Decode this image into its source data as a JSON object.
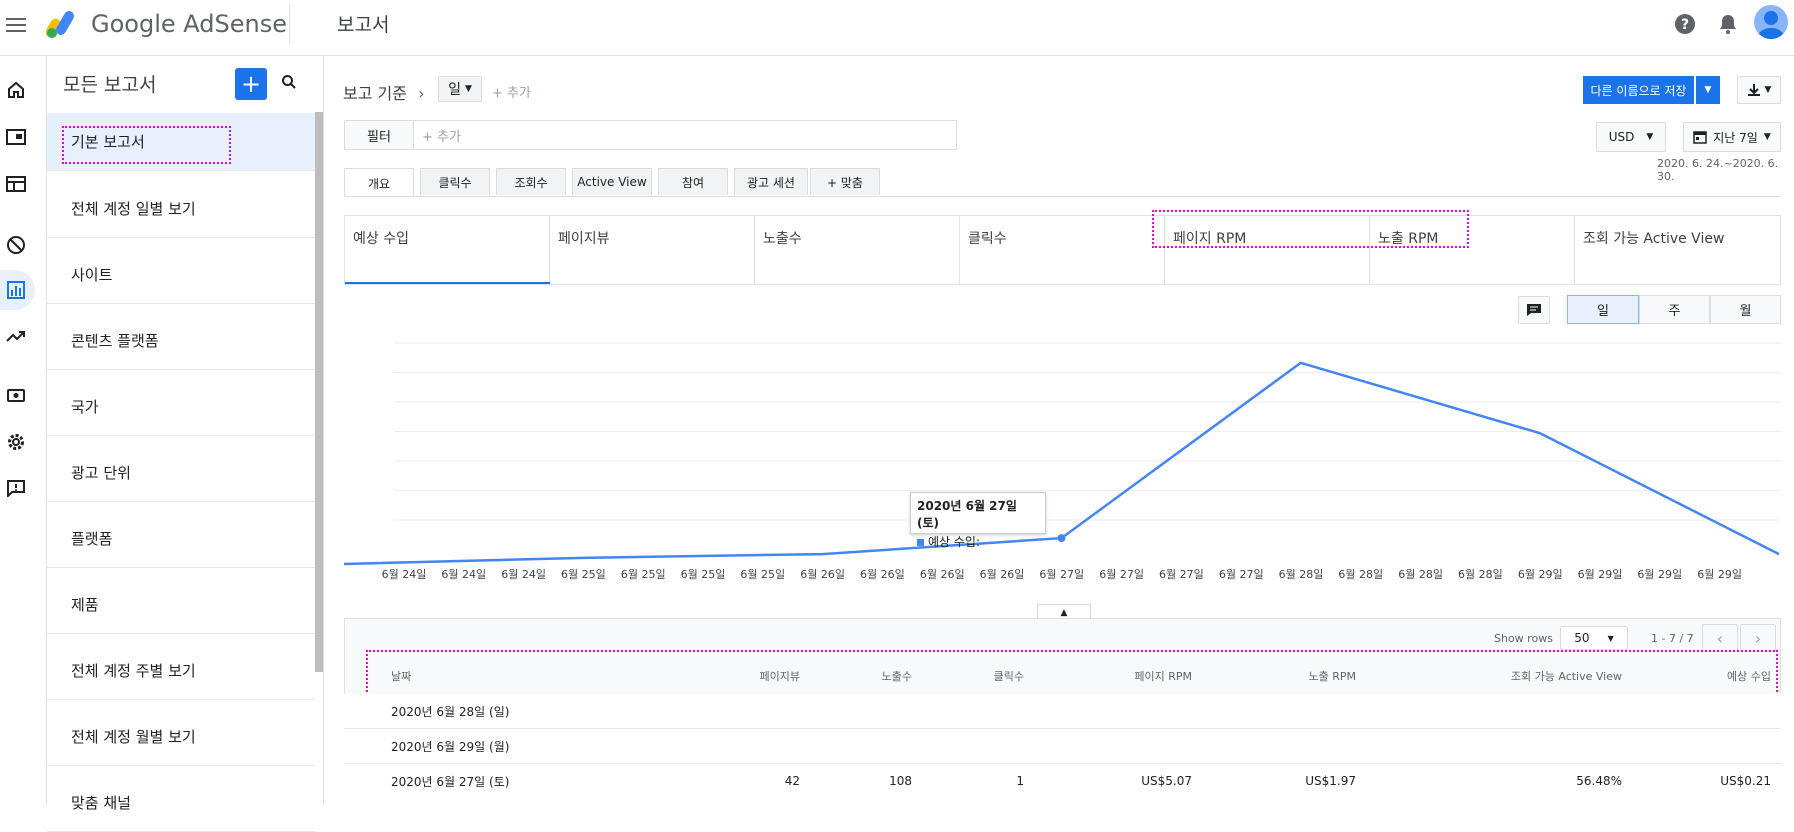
{
  "topbar": {
    "brand": "Google AdSense",
    "page_title": "보고서"
  },
  "colors": {
    "accent": "#1a73e8",
    "line": "#4285f4",
    "highlight": "#e000e0"
  },
  "report_list": {
    "title": "모든 보고서",
    "items": [
      {
        "label": "기본 보고서"
      },
      {
        "label": "전체 계정 일별 보기"
      },
      {
        "label": "사이트"
      },
      {
        "label": "콘텐츠 플랫폼"
      },
      {
        "label": "국가"
      },
      {
        "label": "광고 단위"
      },
      {
        "label": "플랫폼"
      },
      {
        "label": "제품"
      },
      {
        "label": "전체 계정 주별 보기"
      },
      {
        "label": "전체 계정 월별 보기"
      },
      {
        "label": "맞춤 채널"
      }
    ]
  },
  "toolbar": {
    "crumb": "보고 기준",
    "dimension": "일",
    "add": "+ 추가",
    "filter_label": "필터",
    "filter_placeholder": "+ 추가",
    "save_as": "다른 이름으로 저장",
    "currency": "USD",
    "date_range": "지난 7일",
    "date_caption": "2020. 6. 24.~2020. 6. 30."
  },
  "tabs": [
    {
      "label": "개요"
    },
    {
      "label": "클릭수"
    },
    {
      "label": "조회수"
    },
    {
      "label": "Active View"
    },
    {
      "label": "참여"
    },
    {
      "label": "광고 세션"
    },
    {
      "label": "+ 맞춤"
    }
  ],
  "metrics": [
    {
      "label": "예상 수입"
    },
    {
      "label": "페이지뷰"
    },
    {
      "label": "노출수"
    },
    {
      "label": "클릭수"
    },
    {
      "label": "페이지 RPM"
    },
    {
      "label": "노출 RPM"
    },
    {
      "label": "조회 가능 Active View"
    }
  ],
  "granularity": [
    {
      "label": "일"
    },
    {
      "label": "주"
    },
    {
      "label": "월"
    }
  ],
  "chart_data": {
    "type": "line",
    "x": [
      "6월 24일",
      "6월 24일",
      "6월 24일",
      "6월 25일",
      "6월 25일",
      "6월 25일",
      "6월 25일",
      "6월 26일",
      "6월 26일",
      "6월 26일",
      "6월 26일",
      "6월 27일",
      "6월 27일",
      "6월 27일",
      "6월 27일",
      "6월 28일",
      "6월 28일",
      "6월 28일",
      "6월 28일",
      "6월 29일",
      "6월 29일",
      "6월 29일",
      "6월 29일"
    ],
    "series": [
      {
        "values": [
          {
            "x": "6월 24일",
            "y": 0.0
          },
          {
            "x": "6월 25일",
            "y": 0.05
          },
          {
            "x": "6월 26일",
            "y": 0.08
          },
          {
            "x": "6월 27일",
            "y": 0.21
          },
          {
            "x": "6월 28일",
            "y": 1.63
          },
          {
            "x": "6월 29일",
            "y": 1.06
          },
          {
            "x": "6월 30일",
            "y": 0.08
          }
        ]
      }
    ],
    "tooltip": {
      "title": "2020년 6월 27일 (토)",
      "series_label": "예상 수입:"
    },
    "grid": true
  },
  "table": {
    "show_rows_label": "Show rows",
    "rows_select": "50",
    "range": "1 - 7 / 7",
    "headers": [
      "날짜",
      "페이지뷰",
      "노출수",
      "클릭수",
      "페이지 RPM",
      "노출 RPM",
      "조회 가능 Active View",
      "예상 수입"
    ],
    "rows": [
      [
        "2020년 6월 28일 (일)",
        "",
        "",
        "",
        "",
        "",
        "",
        ""
      ],
      [
        "2020년 6월 29일 (월)",
        "",
        "",
        "",
        "",
        "",
        "",
        ""
      ],
      [
        "2020년 6월 27일 (토)",
        "42",
        "108",
        "1",
        "US$5.07",
        "US$1.97",
        "56.48%",
        "US$0.21"
      ]
    ]
  }
}
